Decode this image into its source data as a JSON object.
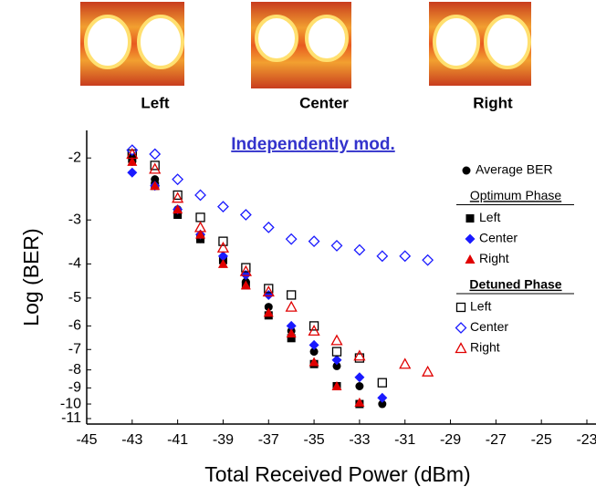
{
  "chart_data": {
    "type": "scatter",
    "eye_labels": [
      "Left",
      "Center",
      "Right"
    ],
    "annotation": "Independently mod.",
    "xlabel": "Total Received Power (dBm)",
    "ylabel": "Log (BER)",
    "xlim": [
      -45,
      -23
    ],
    "xticks": [
      -45,
      -43,
      -41,
      -39,
      -37,
      -35,
      -33,
      -31,
      -29,
      -27,
      -25,
      -23
    ],
    "ylim": [
      -11.4,
      -1.67
    ],
    "yscale": "log-negative",
    "yticks": [
      -2,
      -3,
      -4,
      -5,
      -6,
      -7,
      -8,
      -9,
      -10,
      -11
    ],
    "legend_groups": [
      {
        "title": "Optimum Phase",
        "series": [
          1,
          2,
          3
        ]
      },
      {
        "title": "Detuned Phase",
        "series": [
          4,
          5,
          6
        ]
      }
    ],
    "series": [
      {
        "name": "Average BER",
        "color": "#000000",
        "marker": "circle",
        "filled": true,
        "x": [
          -43,
          -42,
          -41,
          -40,
          -39,
          -38,
          -37,
          -36,
          -35,
          -34,
          -33,
          -32
        ],
        "values": [
          -2.05,
          -2.3,
          -2.8,
          -3.4,
          -3.9,
          -4.5,
          -5.3,
          -6.2,
          -7.1,
          -7.8,
          -8.9,
          -10.0
        ]
      },
      {
        "name": "Left",
        "color": "#000000",
        "marker": "square",
        "filled": true,
        "x": [
          -43,
          -42,
          -41,
          -40,
          -39,
          -38,
          -37,
          -36,
          -35,
          -34,
          -33
        ],
        "values": [
          -2.0,
          -2.4,
          -2.9,
          -3.4,
          -3.9,
          -4.6,
          -5.6,
          -6.5,
          -7.7,
          -8.9,
          -10.0
        ]
      },
      {
        "name": "Center",
        "color": "#1a1aff",
        "marker": "diamond",
        "filled": true,
        "x": [
          -43,
          -42,
          -41,
          -40,
          -39,
          -38,
          -37,
          -36,
          -35,
          -34,
          -33,
          -32
        ],
        "values": [
          -2.2,
          -2.4,
          -2.8,
          -3.3,
          -3.8,
          -4.3,
          -4.9,
          -6.0,
          -6.8,
          -7.5,
          -8.4,
          -9.6
        ]
      },
      {
        "name": "Right",
        "color": "#e00000",
        "marker": "triangle",
        "filled": true,
        "x": [
          -43,
          -42,
          -41,
          -40,
          -39,
          -38,
          -37,
          -36,
          -35,
          -34,
          -33
        ],
        "values": [
          -2.05,
          -2.4,
          -2.8,
          -3.3,
          -4.0,
          -4.6,
          -5.5,
          -6.3,
          -7.6,
          -8.9,
          -9.9
        ]
      },
      {
        "name": "Left",
        "color": "#000000",
        "marker": "square",
        "filled": false,
        "x": [
          -43,
          -42,
          -41,
          -40,
          -39,
          -38,
          -37,
          -36,
          -35,
          -34,
          -33,
          -32
        ],
        "values": [
          -1.95,
          -2.1,
          -2.55,
          -2.95,
          -3.45,
          -4.1,
          -4.7,
          -4.9,
          -6.0,
          -7.1,
          -7.4,
          -8.7
        ]
      },
      {
        "name": "Center",
        "color": "#1a1aff",
        "marker": "diamond",
        "filled": false,
        "x": [
          -43,
          -42,
          -41,
          -40,
          -39,
          -38,
          -37,
          -36,
          -35,
          -34,
          -33,
          -32,
          -31,
          -30
        ],
        "values": [
          -1.9,
          -1.95,
          -2.3,
          -2.55,
          -2.75,
          -2.9,
          -3.15,
          -3.4,
          -3.45,
          -3.55,
          -3.65,
          -3.8,
          -3.8,
          -3.9
        ]
      },
      {
        "name": "Right",
        "color": "#e00000",
        "marker": "triangle",
        "filled": false,
        "x": [
          -43,
          -42,
          -41,
          -40,
          -39,
          -38,
          -37,
          -36,
          -35,
          -34,
          -33,
          -31,
          -30
        ],
        "values": [
          -1.95,
          -2.15,
          -2.6,
          -3.15,
          -3.6,
          -4.2,
          -4.8,
          -5.3,
          -6.2,
          -6.6,
          -7.3,
          -7.7,
          -8.1
        ]
      }
    ]
  }
}
